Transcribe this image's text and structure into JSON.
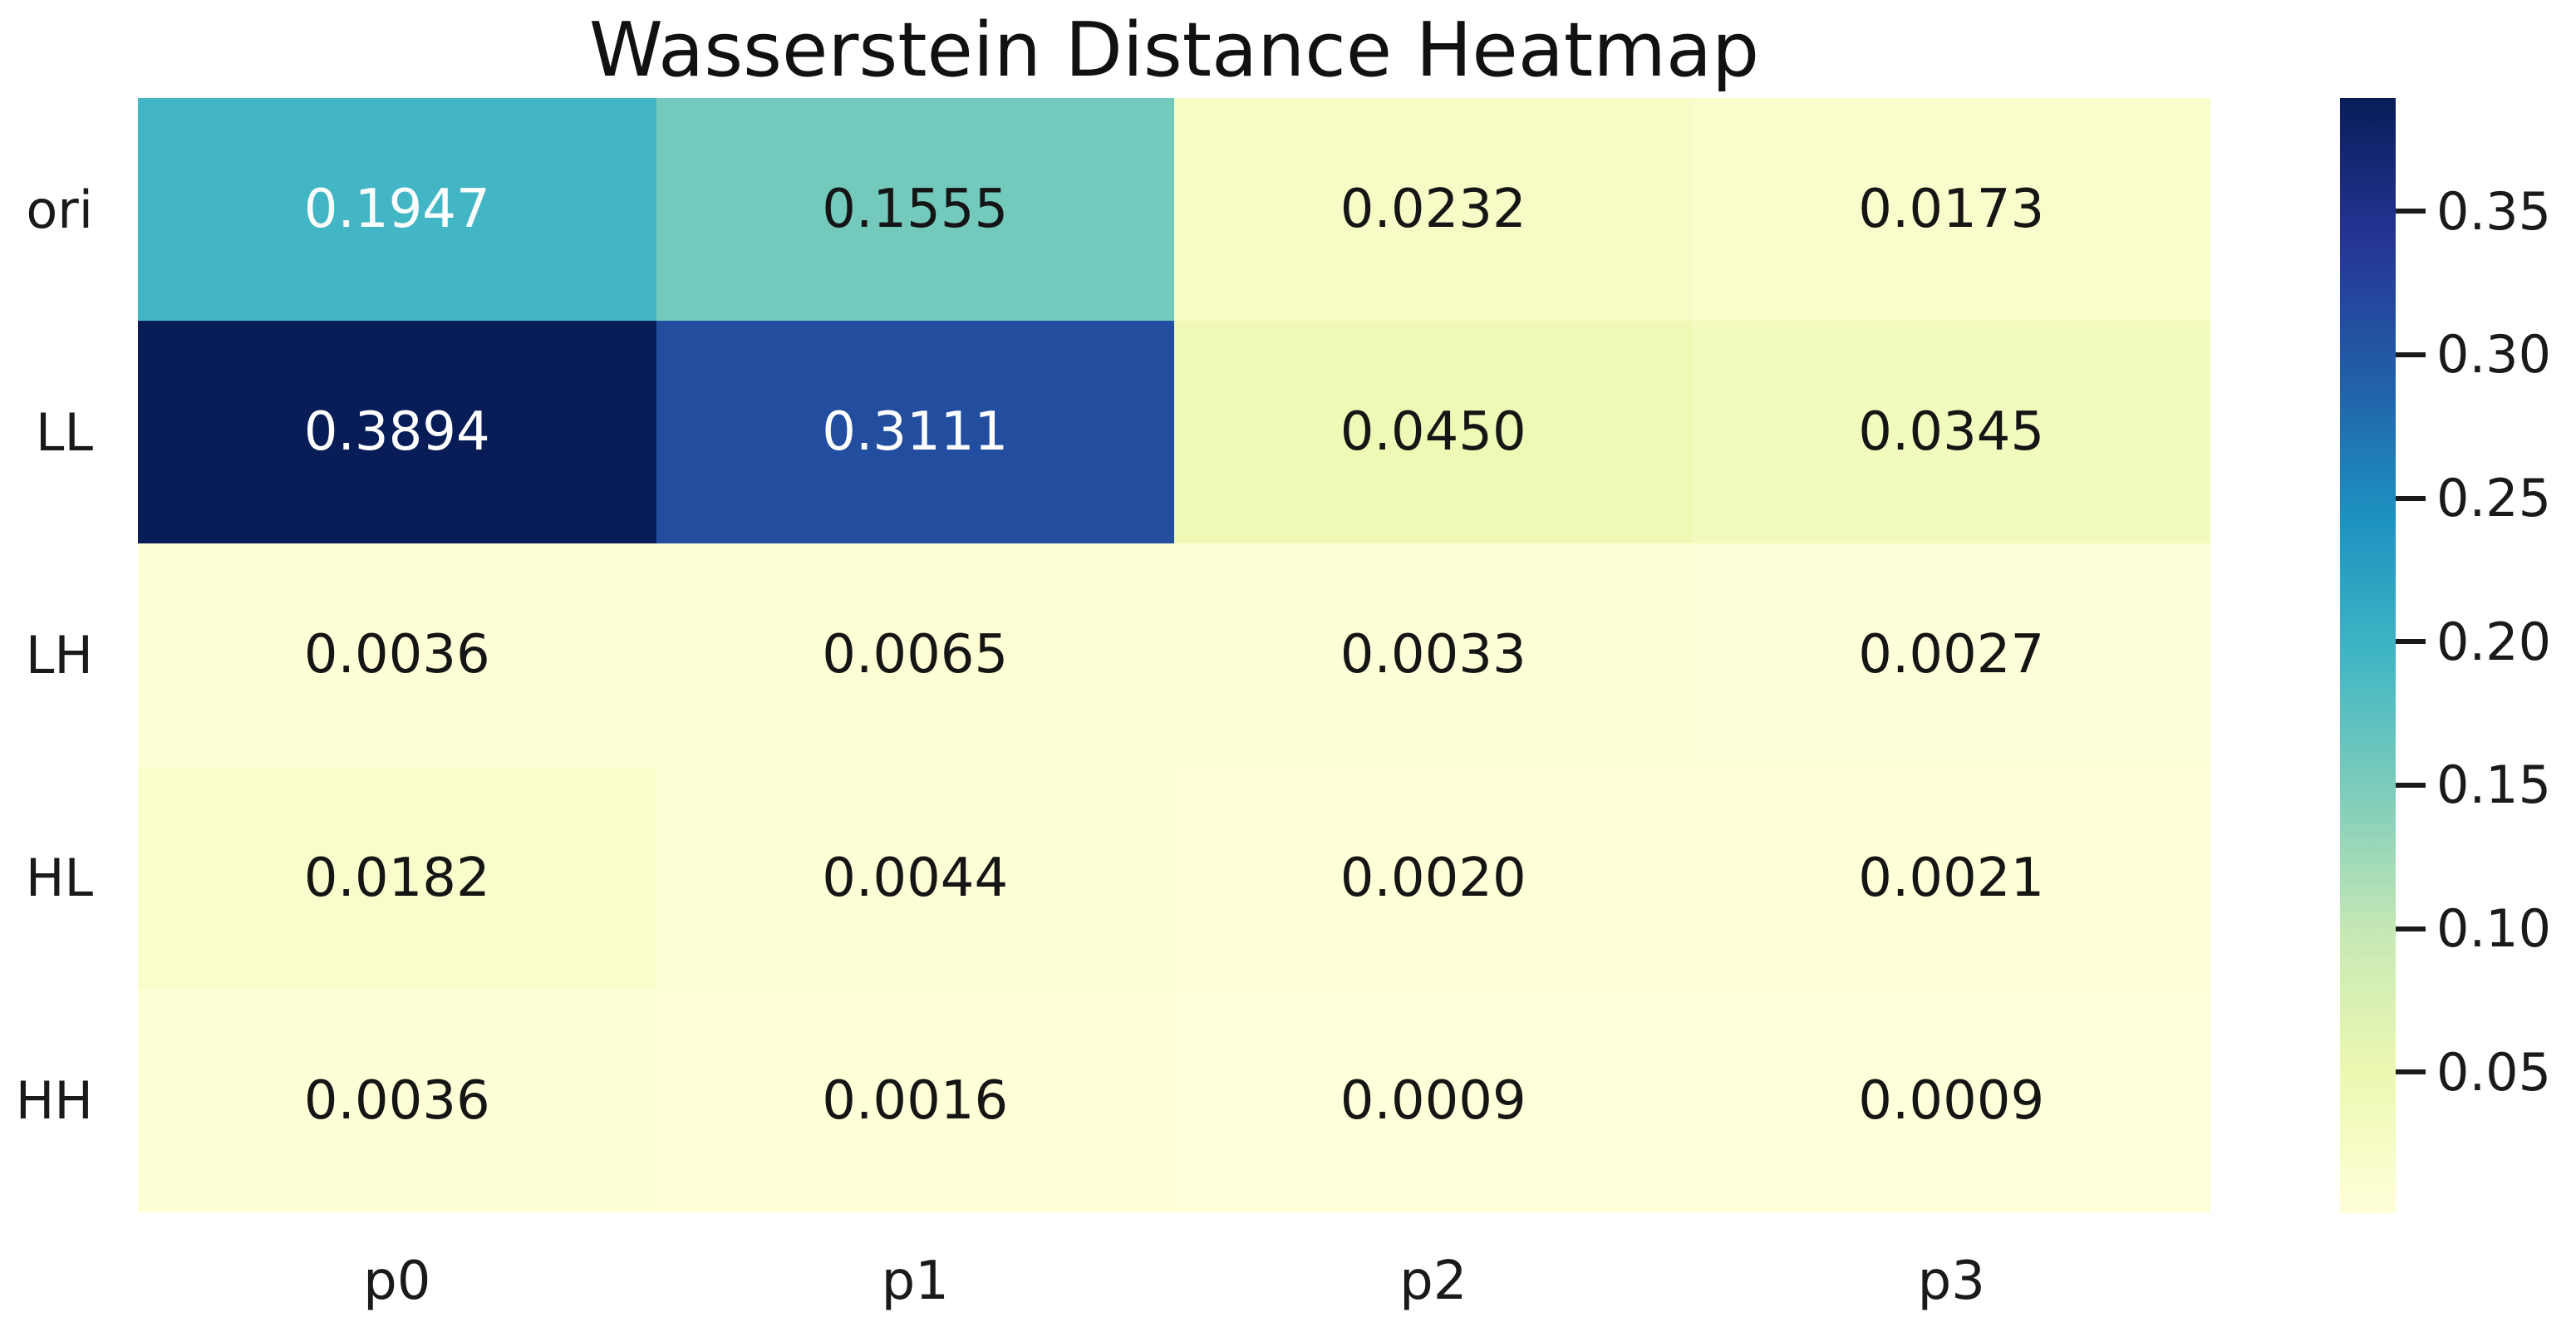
{
  "figure": {
    "title": "Wasserstein Distance Heatmap"
  },
  "chart_data": {
    "type": "heatmap",
    "title": "Wasserstein Distance Heatmap",
    "row_labels": [
      "ori",
      "LL",
      "LH",
      "HL",
      "HH"
    ],
    "col_labels": [
      "p0",
      "p1",
      "p2",
      "p3"
    ],
    "values": [
      [
        0.1947,
        0.1555,
        0.0232,
        0.0173
      ],
      [
        0.3894,
        0.3111,
        0.045,
        0.0345
      ],
      [
        0.0036,
        0.0065,
        0.0033,
        0.0027
      ],
      [
        0.0182,
        0.0044,
        0.002,
        0.0021
      ],
      [
        0.0036,
        0.0016,
        0.0009,
        0.0009
      ]
    ],
    "value_decimals": 4,
    "annotated": true,
    "colormap": "YlGnBu",
    "color_scale": {
      "low_color": "#ffffd9",
      "high_color": "#081d58"
    },
    "colorbar": {
      "position": "right",
      "tick_values": [
        0.35,
        0.3,
        0.25,
        0.2,
        0.15,
        0.1,
        0.05
      ],
      "tick_labels": [
        "0.35",
        "0.30",
        "0.25",
        "0.20",
        "0.15",
        "0.10",
        "0.05"
      ]
    }
  },
  "colors": {
    "background": "#ffffff",
    "title_text": "#111111",
    "axis_text": "#1a1a1a",
    "annotation_dark": "#151515",
    "annotation_light": "#ffffff",
    "tick_mark": "#1a1a1a"
  }
}
